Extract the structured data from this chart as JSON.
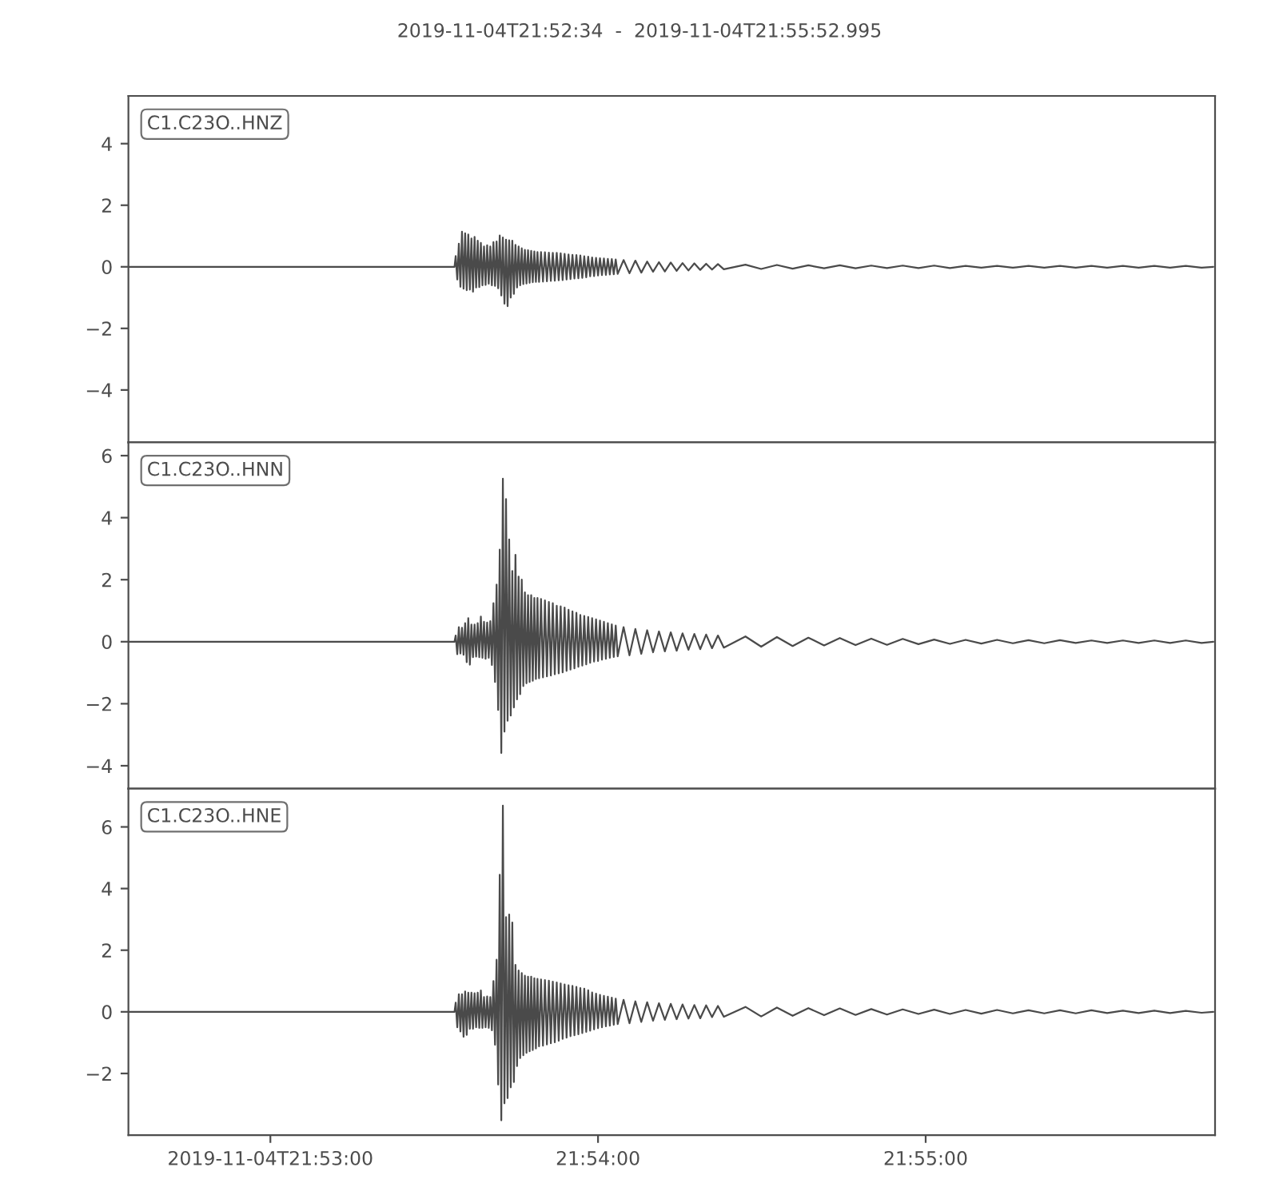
{
  "chart_data": [
    {
      "type": "line",
      "title": "2019-11-04T21:52:34  -  2019-11-04T21:55:52.995",
      "color": "#4a4a4a",
      "annotations": [
        "C1.C23O..HNZ"
      ],
      "xlim": [
        21.876111,
        21.931388
      ],
      "ylim": [
        -5.7,
        5.55
      ],
      "yticks": [
        -4,
        -2,
        0,
        2,
        4
      ],
      "tick_labels": "y",
      "x": [
        21.876111,
        21.8927,
        21.89276,
        21.89284,
        21.89292,
        21.893,
        21.89308,
        21.89316,
        21.89324,
        21.89332,
        21.8934,
        21.89348,
        21.89356,
        21.89364,
        21.89372,
        21.8938,
        21.89388,
        21.89396,
        21.89404,
        21.89412,
        21.8942,
        21.89428,
        21.89436,
        21.89444,
        21.89452,
        21.8946,
        21.89468,
        21.89476,
        21.89484,
        21.89492,
        21.895,
        21.89508,
        21.89516,
        21.89524,
        21.89532,
        21.8954,
        21.89548,
        21.89556,
        21.89564,
        21.89572,
        21.8958,
        21.89588,
        21.89596,
        21.89604,
        21.89612,
        21.8962,
        21.89628,
        21.89636,
        21.89644,
        21.89652,
        21.8966,
        21.89668,
        21.89676,
        21.89684,
        21.89692,
        21.897,
        21.8971,
        21.8972,
        21.8973,
        21.8974,
        21.8975,
        21.8976,
        21.8977,
        21.8978,
        21.8979,
        21.898,
        21.8981,
        21.8982,
        21.8983,
        21.8984,
        21.8985,
        21.8986,
        21.8987,
        21.8988,
        21.8989,
        21.899,
        21.8991,
        21.8992,
        21.8993,
        21.8994,
        21.8995,
        21.8996,
        21.8997,
        21.8998,
        21.8999,
        21.9,
        21.9001,
        21.9002,
        21.9003,
        21.9004,
        21.9005,
        21.9006,
        21.9007,
        21.9008,
        21.9009,
        21.901,
        21.9013,
        21.9016,
        21.9019,
        21.9022,
        21.9025,
        21.9028,
        21.9031,
        21.9034,
        21.9037,
        21.904,
        21.9043,
        21.9046,
        21.9049,
        21.9052,
        21.9055,
        21.9058,
        21.9061,
        21.9064,
        21.9075,
        21.9083,
        21.9091,
        21.9099,
        21.9107,
        21.9115,
        21.9123,
        21.9131,
        21.9139,
        21.9147,
        21.9155,
        21.9163,
        21.9171,
        21.9179,
        21.9187,
        21.9195,
        21.9203,
        21.9211,
        21.9219,
        21.9227,
        21.9235,
        21.9243,
        21.9251,
        21.9259,
        21.9267,
        21.9275,
        21.9283,
        21.9291,
        21.9299,
        21.9307,
        21.9313
      ],
      "values": [
        0,
        0,
        0.35,
        -0.41,
        0.75,
        -0.65,
        1.14,
        -0.71,
        1.09,
        -0.76,
        1.05,
        -0.74,
        0.92,
        -0.81,
        0.97,
        -0.67,
        0.85,
        -0.66,
        0.78,
        -0.6,
        0.66,
        -0.59,
        0.7,
        -0.55,
        0.66,
        -0.6,
        0.8,
        -0.62,
        0.82,
        -0.7,
        1.02,
        -0.93,
        0.95,
        -1.2,
        0.88,
        -1.28,
        0.86,
        -1.0,
        0.85,
        -0.88,
        0.71,
        -0.67,
        0.66,
        -0.6,
        0.6,
        -0.56,
        0.55,
        -0.54,
        0.54,
        -0.52,
        0.52,
        -0.5,
        0.5,
        -0.49,
        0.48,
        -0.49,
        0.48,
        -0.48,
        0.47,
        -0.47,
        0.46,
        -0.46,
        0.45,
        -0.45,
        0.45,
        -0.44,
        0.44,
        -0.43,
        0.42,
        -0.41,
        0.4,
        -0.4,
        0.39,
        -0.38,
        0.38,
        -0.37,
        0.37,
        -0.36,
        0.34,
        -0.34,
        0.33,
        -0.31,
        0.3,
        -0.3,
        0.29,
        -0.28,
        0.28,
        -0.27,
        0.27,
        -0.26,
        0.26,
        -0.25,
        0.25,
        -0.24,
        0.24,
        -0.23,
        0.22,
        -0.21,
        0.2,
        -0.19,
        0.17,
        -0.16,
        0.15,
        -0.15,
        0.14,
        -0.13,
        0.12,
        -0.12,
        0.11,
        -0.1,
        0.1,
        -0.09,
        0.09,
        -0.08,
        0.07,
        -0.07,
        0.06,
        -0.06,
        0.05,
        -0.05,
        0.05,
        -0.05,
        0.04,
        -0.04,
        0.04,
        -0.04,
        0.04,
        -0.04,
        0.03,
        -0.03,
        0.03,
        -0.03,
        0.03,
        -0.03,
        0.03,
        -0.03,
        0.03,
        -0.03,
        0.03,
        -0.03,
        0.03,
        -0.03,
        0.03,
        -0.03,
        0
      ]
    },
    {
      "type": "line",
      "color": "#4a4a4a",
      "annotations": [
        "C1.C23O..HNN"
      ],
      "xlim": [
        21.876111,
        21.931388
      ],
      "ylim": [
        -4.74,
        6.43
      ],
      "yticks": [
        -4,
        -2,
        0,
        2,
        4,
        6
      ],
      "tick_labels": "y",
      "x": [
        21.876111,
        21.8927,
        21.89276,
        21.89284,
        21.89292,
        21.893,
        21.89308,
        21.89316,
        21.89324,
        21.89332,
        21.8934,
        21.89348,
        21.89356,
        21.89364,
        21.89372,
        21.8938,
        21.89388,
        21.89396,
        21.89404,
        21.89412,
        21.8942,
        21.89428,
        21.89436,
        21.89444,
        21.89452,
        21.8946,
        21.89468,
        21.89476,
        21.89484,
        21.89492,
        21.895,
        21.89508,
        21.89516,
        21.89524,
        21.89532,
        21.8954,
        21.89548,
        21.89556,
        21.89564,
        21.89572,
        21.8958,
        21.89588,
        21.89596,
        21.89604,
        21.89612,
        21.8962,
        21.89628,
        21.89636,
        21.89644,
        21.89652,
        21.8966,
        21.89668,
        21.89676,
        21.89684,
        21.89692,
        21.897,
        21.8971,
        21.8972,
        21.8973,
        21.8974,
        21.8975,
        21.8976,
        21.8977,
        21.8978,
        21.8979,
        21.898,
        21.8981,
        21.8982,
        21.8983,
        21.8984,
        21.8985,
        21.8986,
        21.8987,
        21.8988,
        21.8989,
        21.899,
        21.8991,
        21.8992,
        21.8993,
        21.8994,
        21.8995,
        21.8996,
        21.8997,
        21.8998,
        21.8999,
        21.9,
        21.9001,
        21.9002,
        21.9003,
        21.9004,
        21.9005,
        21.9006,
        21.9007,
        21.9008,
        21.9009,
        21.901,
        21.9013,
        21.9016,
        21.9019,
        21.9022,
        21.9025,
        21.9028,
        21.9031,
        21.9034,
        21.9037,
        21.904,
        21.9043,
        21.9046,
        21.9049,
        21.9052,
        21.9055,
        21.9058,
        21.9061,
        21.9064,
        21.9075,
        21.9083,
        21.9091,
        21.9099,
        21.9107,
        21.9115,
        21.9123,
        21.9131,
        21.9139,
        21.9147,
        21.9155,
        21.9163,
        21.9171,
        21.9179,
        21.9187,
        21.9195,
        21.9203,
        21.9211,
        21.9219,
        21.9227,
        21.9235,
        21.9243,
        21.9251,
        21.9259,
        21.9267,
        21.9275,
        21.9283,
        21.9291,
        21.9299,
        21.9307,
        21.9313
      ],
      "values": [
        0,
        0,
        0.2,
        -0.4,
        0.47,
        -0.38,
        0.45,
        -0.42,
        0.6,
        -0.66,
        0.76,
        -0.74,
        0.55,
        -0.5,
        0.55,
        -0.48,
        0.6,
        -0.5,
        0.81,
        -0.52,
        0.64,
        -0.55,
        0.62,
        -0.52,
        0.66,
        -0.75,
        1.24,
        -1.3,
        1.84,
        -2.2,
        2.97,
        -3.59,
        5.26,
        -2.9,
        4.6,
        -2.55,
        3.3,
        -2.38,
        2.28,
        -2.12,
        2.8,
        -1.86,
        2.1,
        -1.69,
        2.0,
        -1.43,
        1.59,
        -1.34,
        1.5,
        -1.3,
        1.5,
        -1.26,
        1.41,
        -1.2,
        1.41,
        -1.18,
        1.38,
        -1.15,
        1.33,
        -1.12,
        1.28,
        -1.09,
        1.24,
        -1.05,
        1.16,
        -1.02,
        1.14,
        -0.99,
        1.1,
        -0.94,
        1.03,
        -0.9,
        0.98,
        -0.86,
        0.93,
        -0.81,
        0.86,
        -0.77,
        0.83,
        -0.73,
        0.8,
        -0.68,
        0.76,
        -0.64,
        0.72,
        -0.62,
        0.68,
        -0.58,
        0.64,
        -0.55,
        0.6,
        -0.52,
        0.56,
        -0.49,
        0.52,
        -0.47,
        0.47,
        -0.44,
        0.41,
        -0.39,
        0.37,
        -0.34,
        0.33,
        -0.31,
        0.3,
        -0.29,
        0.27,
        -0.26,
        0.25,
        -0.24,
        0.23,
        -0.21,
        0.2,
        -0.19,
        0.17,
        -0.16,
        0.15,
        -0.14,
        0.13,
        -0.12,
        0.12,
        -0.11,
        0.1,
        -0.1,
        0.09,
        -0.08,
        0.07,
        -0.07,
        0.06,
        -0.06,
        0.06,
        -0.05,
        0.05,
        -0.05,
        0.05,
        -0.04,
        0.04,
        -0.04,
        0.04,
        -0.04,
        0.04,
        -0.04,
        0.04,
        -0.04,
        0
      ]
    },
    {
      "type": "line",
      "color": "#4a4a4a",
      "annotations": [
        "C1.C23O..HNE"
      ],
      "xlim": [
        21.876111,
        21.931388
      ],
      "ylim": [
        -4.0,
        7.24
      ],
      "yticks": [
        -2,
        0,
        2,
        4,
        6
      ],
      "xticks": [
        {
          "value": 21.883333,
          "label": "2019-11-04T21:53:00"
        },
        {
          "value": 21.9,
          "label": "21:54:00"
        },
        {
          "value": 21.916667,
          "label": "21:55:00"
        }
      ],
      "x": [
        21.876111,
        21.8927,
        21.89276,
        21.89284,
        21.89292,
        21.893,
        21.89308,
        21.89316,
        21.89324,
        21.89332,
        21.8934,
        21.89348,
        21.89356,
        21.89364,
        21.89372,
        21.8938,
        21.89388,
        21.89396,
        21.89404,
        21.89412,
        21.8942,
        21.89428,
        21.89436,
        21.89444,
        21.89452,
        21.8946,
        21.89468,
        21.89476,
        21.89484,
        21.89492,
        21.895,
        21.89508,
        21.89516,
        21.89524,
        21.89532,
        21.8954,
        21.89548,
        21.89556,
        21.89564,
        21.89572,
        21.8958,
        21.89588,
        21.89596,
        21.89604,
        21.89612,
        21.8962,
        21.89628,
        21.89636,
        21.89644,
        21.89652,
        21.8966,
        21.89668,
        21.89676,
        21.89684,
        21.89692,
        21.897,
        21.8971,
        21.8972,
        21.8973,
        21.8974,
        21.8975,
        21.8976,
        21.8977,
        21.8978,
        21.8979,
        21.898,
        21.8981,
        21.8982,
        21.8983,
        21.8984,
        21.8985,
        21.8986,
        21.8987,
        21.8988,
        21.8989,
        21.899,
        21.8991,
        21.8992,
        21.8993,
        21.8994,
        21.8995,
        21.8996,
        21.8997,
        21.8998,
        21.8999,
        21.9,
        21.9001,
        21.9002,
        21.9003,
        21.9004,
        21.9005,
        21.9006,
        21.9007,
        21.9008,
        21.9009,
        21.901,
        21.9013,
        21.9016,
        21.9019,
        21.9022,
        21.9025,
        21.9028,
        21.9031,
        21.9034,
        21.9037,
        21.904,
        21.9043,
        21.9046,
        21.9049,
        21.9052,
        21.9055,
        21.9058,
        21.9061,
        21.9064,
        21.9075,
        21.9083,
        21.9091,
        21.9099,
        21.9107,
        21.9115,
        21.9123,
        21.9131,
        21.9139,
        21.9147,
        21.9155,
        21.9163,
        21.9171,
        21.9179,
        21.9187,
        21.9195,
        21.9203,
        21.9211,
        21.9219,
        21.9227,
        21.9235,
        21.9243,
        21.9251,
        21.9259,
        21.9267,
        21.9275,
        21.9283,
        21.9291,
        21.9299,
        21.9307,
        21.9313
      ],
      "values": [
        0,
        0,
        0.3,
        -0.5,
        0.57,
        -0.64,
        0.57,
        -0.81,
        0.66,
        -0.75,
        0.62,
        -0.55,
        0.62,
        -0.55,
        0.6,
        -0.5,
        0.62,
        -0.52,
        0.69,
        -0.52,
        0.48,
        -0.5,
        0.5,
        -0.52,
        0.48,
        -0.6,
        1.0,
        -1.07,
        1.69,
        -2.36,
        4.45,
        -3.52,
        6.69,
        -2.97,
        3.07,
        -2.8,
        3.16,
        -2.45,
        2.9,
        -2.28,
        1.52,
        -1.76,
        1.34,
        -1.5,
        1.26,
        -1.41,
        1.17,
        -1.33,
        1.14,
        -1.28,
        1.14,
        -1.24,
        1.09,
        -1.19,
        1.07,
        -1.12,
        1.05,
        -1.1,
        1.03,
        -1.06,
        1.01,
        -1.02,
        0.98,
        -0.99,
        0.95,
        -0.94,
        0.92,
        -0.88,
        0.89,
        -0.84,
        0.86,
        -0.79,
        0.84,
        -0.76,
        0.81,
        -0.73,
        0.77,
        -0.69,
        0.75,
        -0.65,
        0.7,
        -0.61,
        0.63,
        -0.57,
        0.59,
        -0.53,
        0.55,
        -0.5,
        0.52,
        -0.47,
        0.49,
        -0.45,
        0.46,
        -0.42,
        0.43,
        -0.4,
        0.39,
        -0.37,
        0.34,
        -0.33,
        0.31,
        -0.29,
        0.28,
        -0.26,
        0.26,
        -0.24,
        0.24,
        -0.22,
        0.22,
        -0.21,
        0.21,
        -0.17,
        0.19,
        -0.16,
        0.16,
        -0.15,
        0.14,
        -0.13,
        0.12,
        -0.11,
        0.11,
        -0.1,
        0.09,
        -0.09,
        0.08,
        -0.07,
        0.07,
        -0.07,
        0.06,
        -0.06,
        0.06,
        -0.05,
        0.05,
        -0.05,
        0.05,
        -0.05,
        0.05,
        -0.04,
        0.04,
        -0.04,
        0.04,
        -0.04,
        0.03,
        -0.03,
        0
      ]
    }
  ]
}
